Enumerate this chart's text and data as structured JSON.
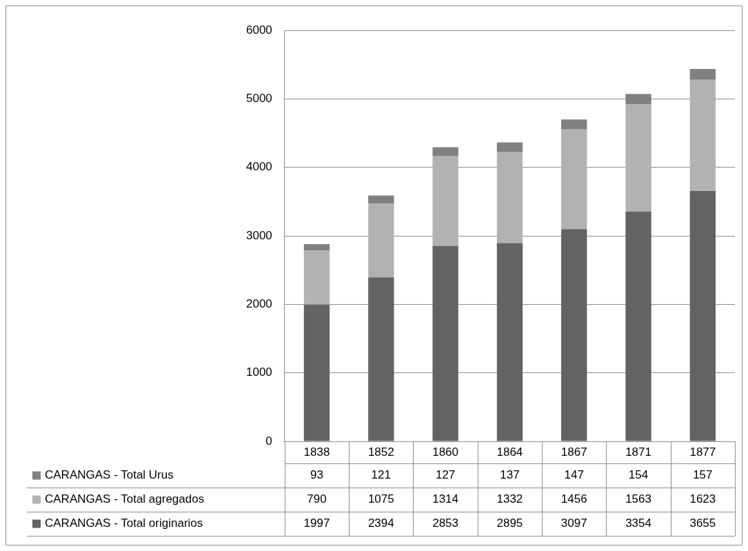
{
  "chart_data": {
    "type": "bar",
    "stacked": true,
    "categories": [
      "1838",
      "1852",
      "1860",
      "1864",
      "1867",
      "1871",
      "1877"
    ],
    "series": [
      {
        "name": "CARANGAS - Total originarios",
        "color": "#636363",
        "values": [
          1997,
          2394,
          2853,
          2895,
          3097,
          3354,
          3655
        ]
      },
      {
        "name": "CARANGAS - Total agregados",
        "color": "#b2b2b2",
        "values": [
          790,
          1075,
          1314,
          1332,
          1456,
          1563,
          1623
        ]
      },
      {
        "name": "CARANGAS - Total Urus",
        "color": "#808080",
        "values": [
          93,
          121,
          127,
          137,
          147,
          154,
          157
        ]
      }
    ],
    "ylim": [
      0,
      6000
    ],
    "yticks": [
      0,
      1000,
      2000,
      3000,
      4000,
      5000,
      6000
    ],
    "grid": "y",
    "legend": "bottom",
    "data_labels": true
  }
}
